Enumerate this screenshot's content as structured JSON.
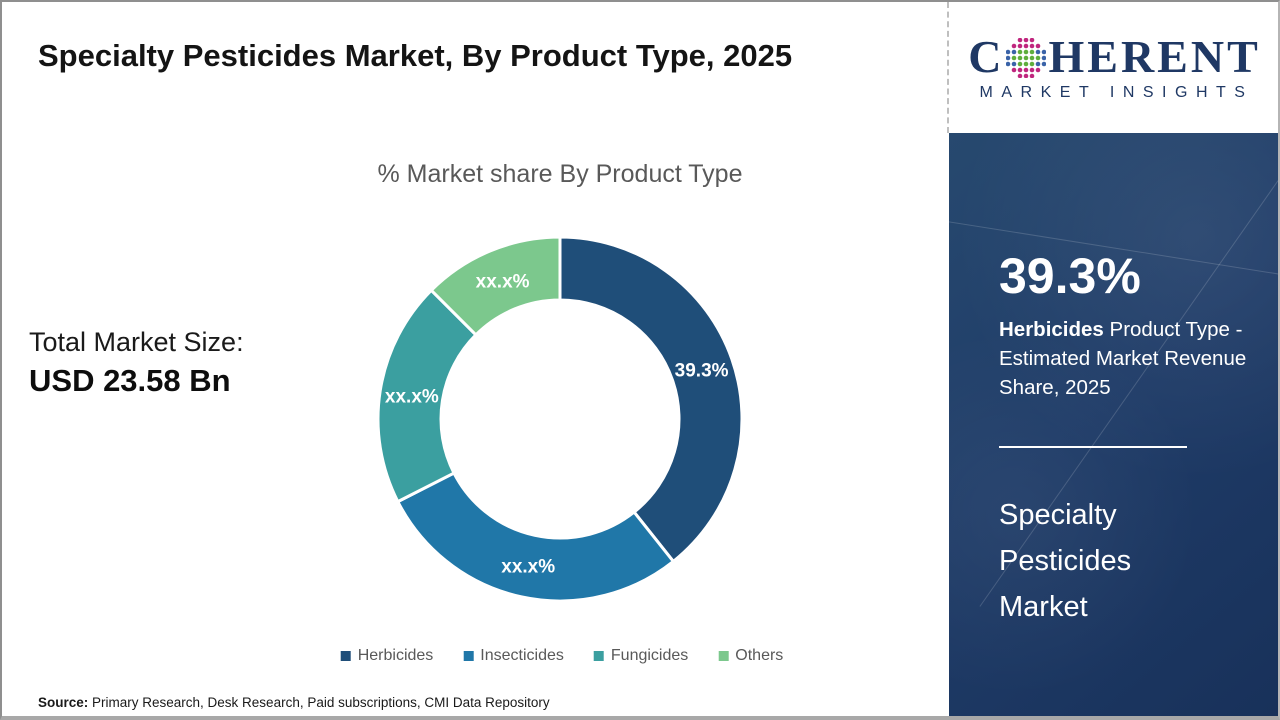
{
  "page": {
    "title": "Specialty Pesticides Market, By Product Type, 2025",
    "source_label": "Source:",
    "source_text": " Primary Research, Desk Research, Paid subscriptions, CMI Data Repository"
  },
  "chart_data": {
    "type": "pie",
    "subtype": "donut",
    "title": "% Market share By Product Type",
    "legend_position": "bottom",
    "start_angle_deg": 0,
    "direction": "clockwise",
    "inner_radius_ratio": 0.65,
    "segments": [
      {
        "name": "Herbicides",
        "value": 39.3,
        "label": "39.3%",
        "color": "#1F4E79"
      },
      {
        "name": "Insecticides",
        "value": 28.2,
        "label": "xx.x%",
        "color": "#2077A8"
      },
      {
        "name": "Fungicides",
        "value": 20.0,
        "label": "xx.x%",
        "color": "#3B9FA0"
      },
      {
        "name": "Others",
        "value": 12.5,
        "label": "xx.x%",
        "color": "#7CC88D"
      }
    ],
    "label_color": "#ffffff"
  },
  "total_market": {
    "label": "Total Market Size:",
    "value": "USD 23.58 Bn"
  },
  "logo": {
    "prefix": "C",
    "suffix": "HERENT",
    "subtitle": "MARKET INSIGHTS",
    "icon": "globe-dots-icon",
    "brand_color": "#1F3864",
    "globe_colors": {
      "green": "#5FAE3C",
      "magenta": "#C0267E",
      "blue": "#3A63A8"
    }
  },
  "sidebar": {
    "stat_value": "39.3%",
    "stat_bold": "Herbicides",
    "stat_rest": " Product Type - Estimated Market Revenue Share, 2025",
    "market_name": "Specialty Pesticides Market",
    "bg_color": "#1F3C68",
    "divider_color": "#FFFFFF"
  }
}
